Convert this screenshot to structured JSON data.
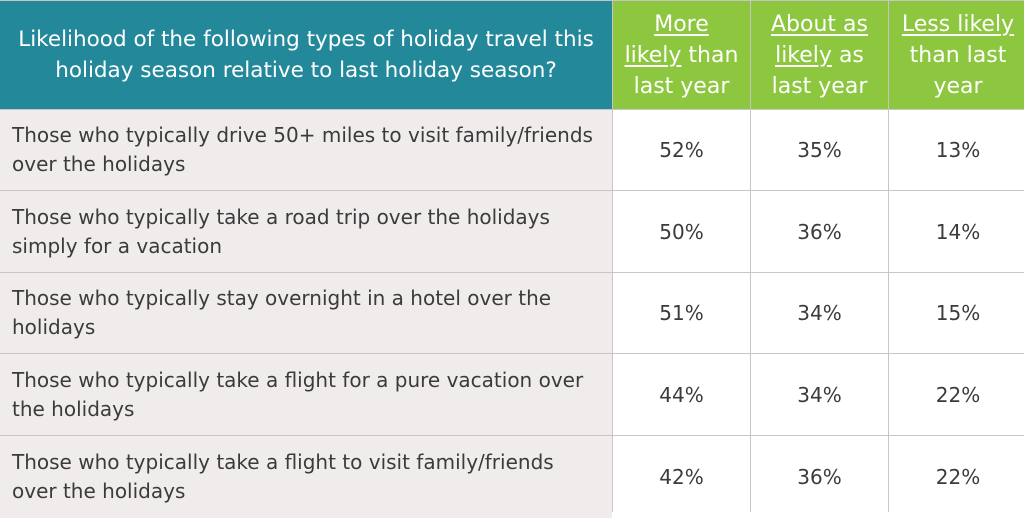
{
  "chart_data": {
    "type": "table",
    "header": {
      "question": "Likelihood of the following types of holiday travel this holiday season relative to last holiday season?",
      "columns": [
        {
          "underlined": "More likely",
          "rest": " than last year",
          "parts": [
            "More",
            "likely",
            "than",
            "last year"
          ]
        },
        {
          "underlined": "About as likely",
          "rest": " as last year",
          "parts": [
            "About as",
            "likely",
            "as",
            "last year"
          ]
        },
        {
          "underlined": "Less likely",
          "rest": " than last year",
          "parts": [
            "Less likely",
            "",
            "than last",
            "year"
          ]
        }
      ]
    },
    "rows": [
      {
        "label": "Those who typically drive 50+ miles to visit family/friends over the holidays",
        "values": [
          "52%",
          "35%",
          "13%"
        ]
      },
      {
        "label": "Those who typically take a road trip over the holidays simply for a vacation",
        "values": [
          "50%",
          "36%",
          "14%"
        ]
      },
      {
        "label": "Those who typically stay overnight in a hotel over the holidays",
        "values": [
          "51%",
          "34%",
          "15%"
        ]
      },
      {
        "label": "Those who typically take a flight for a pure vacation over the holidays",
        "values": [
          "44%",
          "34%",
          "22%"
        ]
      },
      {
        "label": "Those who typically take a flight to visit family/friends over the holidays",
        "values": [
          "42%",
          "36%",
          "22%"
        ]
      }
    ],
    "colors": {
      "header_main": "#23899a",
      "header_columns": "#8dc63f",
      "row_label_bg": "#f0ecec",
      "text": "#3b3b3b"
    }
  }
}
